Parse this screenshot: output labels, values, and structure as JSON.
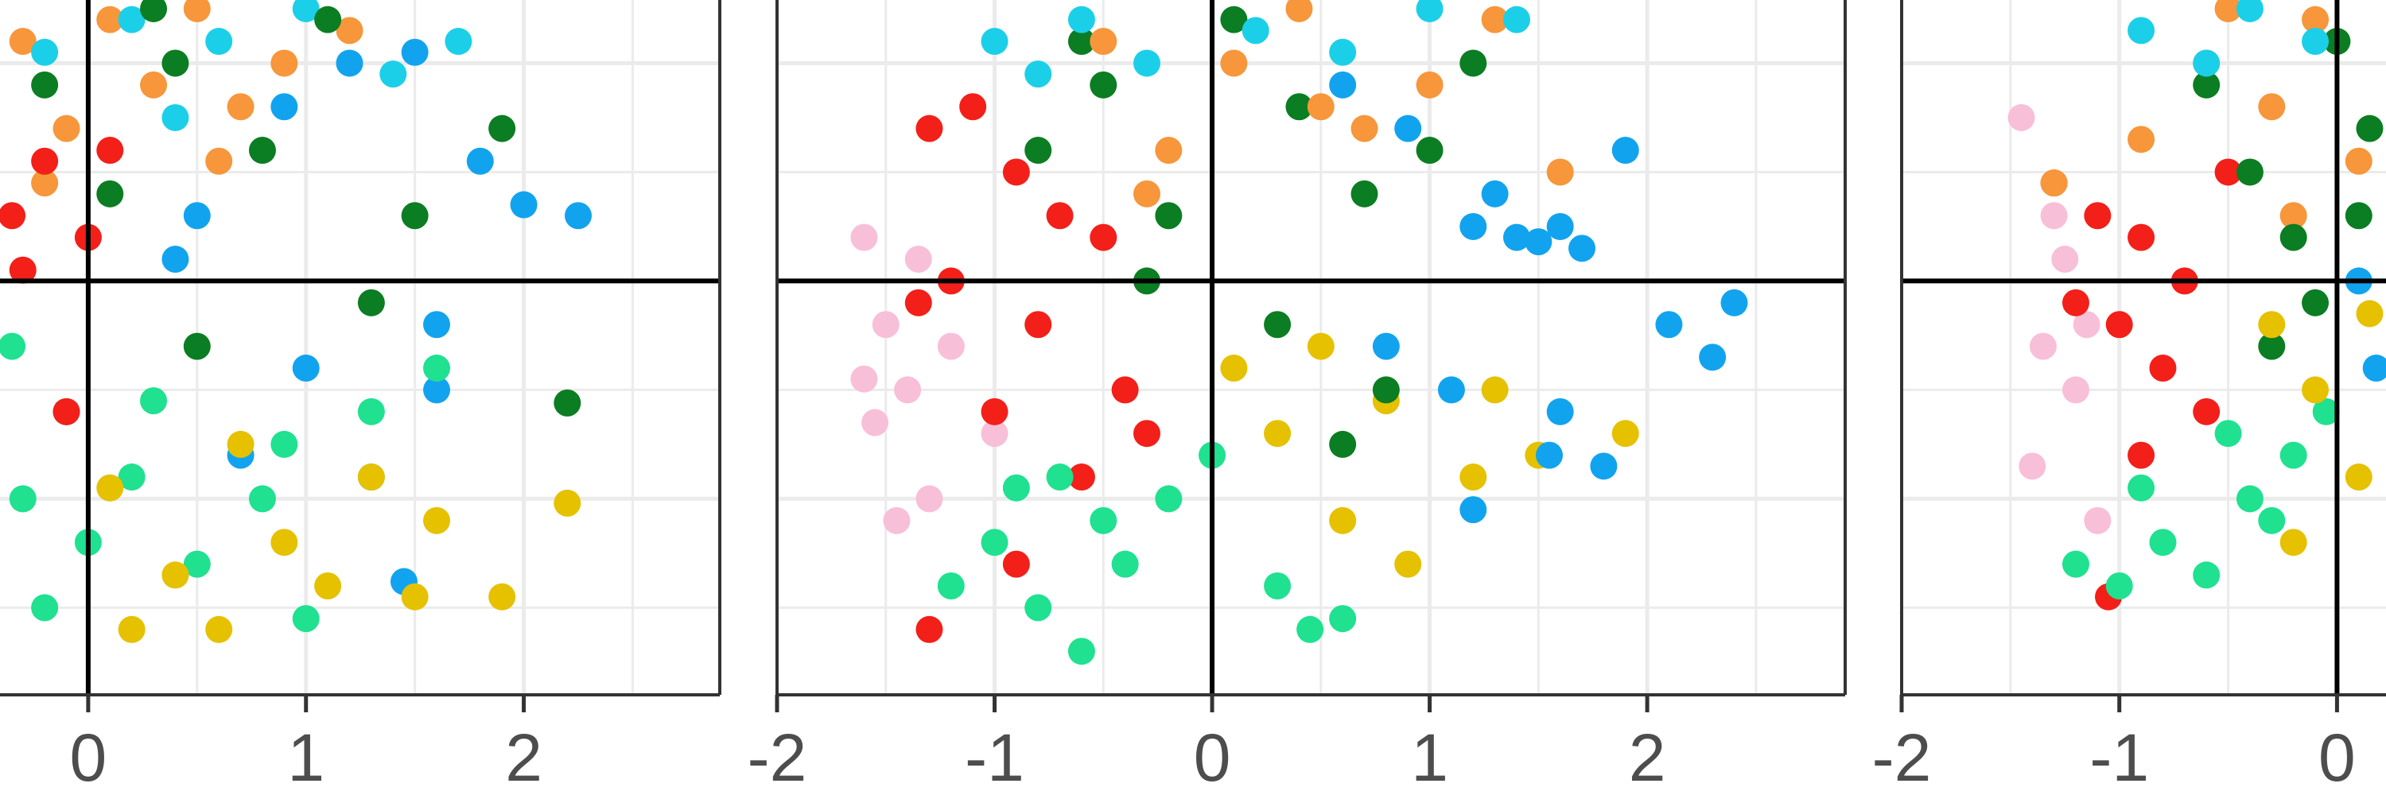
{
  "chart_data": [
    {
      "type": "scatter",
      "xlim": [
        -0.405,
        2.9
      ],
      "ylim": [
        -1.9,
        1.29
      ],
      "xticks": [
        0,
        1,
        2
      ],
      "xgrid": [
        0,
        0.5,
        1,
        1.5,
        2,
        2.5
      ],
      "ygrid": [
        -1.5,
        -1,
        -0.5,
        0.5,
        1
      ],
      "hline": 0,
      "vline": 0,
      "series": [
        {
          "color": "#f7963a",
          "x": [
            -0.3,
            -0.1,
            0.1,
            0.3,
            0.5,
            0.7,
            0.9,
            1.2,
            -0.2,
            0.6
          ],
          "y": [
            1.1,
            0.7,
            1.2,
            0.9,
            1.25,
            0.8,
            1.0,
            1.15,
            0.45,
            0.55
          ]
        },
        {
          "color": "#1ccfe8",
          "x": [
            -0.2,
            0.2,
            0.6,
            1.0,
            1.4,
            1.7,
            0.4
          ],
          "y": [
            1.05,
            1.2,
            1.1,
            1.25,
            0.95,
            1.1,
            0.75
          ]
        },
        {
          "color": "#0b7d22",
          "x": [
            -0.2,
            0.1,
            0.4,
            0.8,
            1.1,
            1.5,
            1.9,
            2.2,
            0.5,
            -0.1,
            1.3,
            0.3
          ],
          "y": [
            0.9,
            0.4,
            1.0,
            0.6,
            1.2,
            0.3,
            0.7,
            -0.56,
            -0.3,
            -0.6,
            -0.1,
            1.25
          ]
        },
        {
          "color": "#12a3ef",
          "x": [
            0.5,
            0.9,
            1.2,
            1.5,
            1.8,
            2.0,
            2.25,
            1.6,
            1.0,
            0.7,
            1.3,
            1.6,
            0.4,
            1.45
          ],
          "y": [
            0.3,
            0.8,
            1.0,
            1.05,
            0.55,
            0.35,
            0.3,
            -0.2,
            -0.4,
            -0.8,
            -0.9,
            -0.5,
            0.1,
            -1.38
          ]
        },
        {
          "color": "#f31f19",
          "x": [
            -0.35,
            -0.2,
            0,
            -0.3,
            0.1,
            -0.1
          ],
          "y": [
            0.3,
            0.55,
            0.2,
            0.05,
            0.6,
            -0.6
          ]
        },
        {
          "color": "#1fe190",
          "x": [
            -0.35,
            -0.2,
            0,
            0.2,
            0.5,
            0.8,
            1.0,
            1.3,
            1.6,
            -0.3,
            0.3,
            0.9
          ],
          "y": [
            -0.3,
            -1.5,
            -1.2,
            -0.9,
            -1.3,
            -1.0,
            -1.55,
            -0.6,
            -0.4,
            -1.0,
            -0.55,
            -0.75
          ]
        },
        {
          "color": "#e5c100",
          "x": [
            0.1,
            0.4,
            0.6,
            0.9,
            1.1,
            1.3,
            1.6,
            1.9,
            2.2,
            0.7,
            1.5,
            0.2
          ],
          "y": [
            -0.95,
            -1.35,
            -1.6,
            -1.2,
            -1.4,
            -0.9,
            -1.1,
            -1.45,
            -1.02,
            -0.75,
            -1.45,
            -1.6
          ]
        }
      ]
    },
    {
      "type": "scatter",
      "xlim": [
        -2.0,
        2.91
      ],
      "ylim": [
        -1.9,
        1.29
      ],
      "xticks": [
        -2,
        -1,
        0,
        1,
        2
      ],
      "xgrid": [
        -1.5,
        -1,
        -0.5,
        0,
        0.5,
        1,
        1.5,
        2,
        2.5
      ],
      "ygrid": [
        -1.5,
        -1,
        -0.5,
        0.5,
        1
      ],
      "hline": 0,
      "vline": 0,
      "series": [
        {
          "color": "#f8bfd9",
          "x": [
            -1.6,
            -1.5,
            -1.4,
            -1.55,
            -1.3,
            -1.2,
            -1.45,
            -1.0,
            -1.6,
            -1.35
          ],
          "y": [
            0.2,
            -0.2,
            -0.5,
            -0.65,
            -1.0,
            -0.3,
            -1.1,
            -0.7,
            -0.45,
            0.1
          ]
        },
        {
          "color": "#f31f19",
          "x": [
            -1.3,
            -1.1,
            -0.9,
            -0.7,
            -0.5,
            -1.2,
            -0.8,
            -0.4,
            -1.0,
            -0.6,
            -0.3,
            -1.3,
            -0.9,
            -1.35
          ],
          "y": [
            0.7,
            0.8,
            0.5,
            0.3,
            0.2,
            0.0,
            -0.2,
            -0.5,
            -0.6,
            -0.9,
            -0.7,
            -1.6,
            -1.3,
            -0.1
          ]
        },
        {
          "color": "#1fe190",
          "x": [
            -1.2,
            -1.0,
            -0.8,
            -0.6,
            -0.4,
            -0.2,
            0,
            0.3,
            0.6,
            -0.7,
            -0.5,
            -0.9,
            0.45
          ],
          "y": [
            -1.4,
            -1.2,
            -1.5,
            -1.7,
            -1.3,
            -1.0,
            -0.8,
            -1.4,
            -1.55,
            -0.9,
            -1.1,
            -0.95,
            -1.6
          ]
        },
        {
          "color": "#e5c100",
          "x": [
            0.1,
            0.3,
            0.6,
            0.9,
            1.2,
            1.5,
            1.9,
            0.8,
            1.3,
            0.5
          ],
          "y": [
            -0.4,
            -0.7,
            -1.1,
            -1.3,
            -0.9,
            -0.8,
            -0.7,
            -0.55,
            -0.5,
            -0.3
          ]
        },
        {
          "color": "#0b7d22",
          "x": [
            -0.8,
            -0.5,
            -0.2,
            0.1,
            0.4,
            0.7,
            1.0,
            1.2,
            -0.3,
            0.3,
            0.8,
            0.6,
            -0.6
          ],
          "y": [
            0.6,
            0.9,
            0.3,
            1.2,
            0.8,
            0.4,
            0.6,
            1.0,
            0.0,
            -0.2,
            -0.5,
            -0.75,
            1.1
          ]
        },
        {
          "color": "#12a3ef",
          "x": [
            0.6,
            0.9,
            1.2,
            1.4,
            1.5,
            1.6,
            1.7,
            1.3,
            1.9,
            2.1,
            2.3,
            2.4,
            1.1,
            1.6,
            1.8,
            0.8,
            1.55,
            1.2
          ],
          "y": [
            0.9,
            0.7,
            0.25,
            0.2,
            0.18,
            0.25,
            0.15,
            0.4,
            0.6,
            -0.2,
            -0.35,
            -0.1,
            -0.5,
            -0.6,
            -0.85,
            -0.3,
            -0.8,
            -1.05
          ]
        },
        {
          "color": "#f7963a",
          "x": [
            -0.5,
            -0.2,
            0.1,
            0.4,
            0.7,
            1.0,
            1.3,
            1.6,
            -0.3,
            0.5
          ],
          "y": [
            1.1,
            0.6,
            1.0,
            1.25,
            0.7,
            0.9,
            1.2,
            0.5,
            0.4,
            0.8
          ]
        },
        {
          "color": "#1ccfe8",
          "x": [
            -1.0,
            -0.6,
            -0.3,
            0.2,
            0.6,
            1.0,
            1.4,
            -0.8
          ],
          "y": [
            1.1,
            1.2,
            1.0,
            1.15,
            1.05,
            1.25,
            1.2,
            0.95
          ]
        }
      ]
    },
    {
      "type": "scatter",
      "xlim": [
        -2.0,
        0.225
      ],
      "ylim": [
        -1.9,
        1.29
      ],
      "xticks": [
        -2,
        -1,
        0
      ],
      "xgrid": [
        -1.5,
        -1,
        -0.5,
        0
      ],
      "ygrid": [
        -1.5,
        -1,
        -0.5,
        0.5,
        1
      ],
      "hline": 0,
      "vline": 0,
      "series": [
        {
          "color": "#f8bfd9",
          "x": [
            -1.45,
            -1.3,
            -1.35,
            -1.2,
            -1.4,
            -1.1,
            -1.25,
            -1.15
          ],
          "y": [
            0.75,
            0.3,
            -0.3,
            -0.5,
            -0.85,
            -1.1,
            0.1,
            -0.2
          ]
        },
        {
          "color": "#f31f19",
          "x": [
            -1.3,
            -1.1,
            -0.9,
            -0.7,
            -1.0,
            -0.8,
            -0.6,
            -1.2,
            -0.9,
            -0.5,
            -1.05
          ],
          "y": [
            0.45,
            0.3,
            0.2,
            0.0,
            -0.2,
            -0.4,
            -0.6,
            -0.1,
            -0.8,
            0.5,
            -1.45
          ]
        },
        {
          "color": "#1fe190",
          "x": [
            -1.2,
            -1.0,
            -0.8,
            -0.6,
            -0.4,
            -0.2,
            -0.05,
            -0.9,
            -0.5,
            -0.3
          ],
          "y": [
            -1.3,
            -1.4,
            -1.2,
            -1.35,
            -1.0,
            -0.8,
            -0.6,
            -0.95,
            -0.7,
            -1.1
          ]
        },
        {
          "color": "#f7963a",
          "x": [
            -1.3,
            -0.9,
            -0.6,
            -0.3,
            -0.1,
            0.1,
            -0.5,
            -0.2
          ],
          "y": [
            0.45,
            0.65,
            1.0,
            0.8,
            1.2,
            0.55,
            1.25,
            0.3
          ]
        },
        {
          "color": "#0b7d22",
          "x": [
            -0.6,
            -0.4,
            -0.2,
            0,
            0.15,
            -0.3,
            -0.1,
            0.1
          ],
          "y": [
            0.9,
            0.5,
            0.2,
            1.1,
            0.7,
            -0.3,
            -0.1,
            0.3
          ]
        },
        {
          "color": "#e5c100",
          "x": [
            -0.3,
            -0.1,
            0.1,
            -0.2,
            0.15
          ],
          "y": [
            -0.2,
            -0.5,
            -0.9,
            -1.2,
            -0.15
          ]
        },
        {
          "color": "#1ccfe8",
          "x": [
            -0.9,
            -0.6,
            -0.4,
            -0.1
          ],
          "y": [
            1.15,
            1.0,
            1.25,
            1.1
          ]
        },
        {
          "color": "#12a3ef",
          "x": [
            0.1,
            0.18
          ],
          "y": [
            0.0,
            -0.4
          ]
        }
      ]
    }
  ]
}
